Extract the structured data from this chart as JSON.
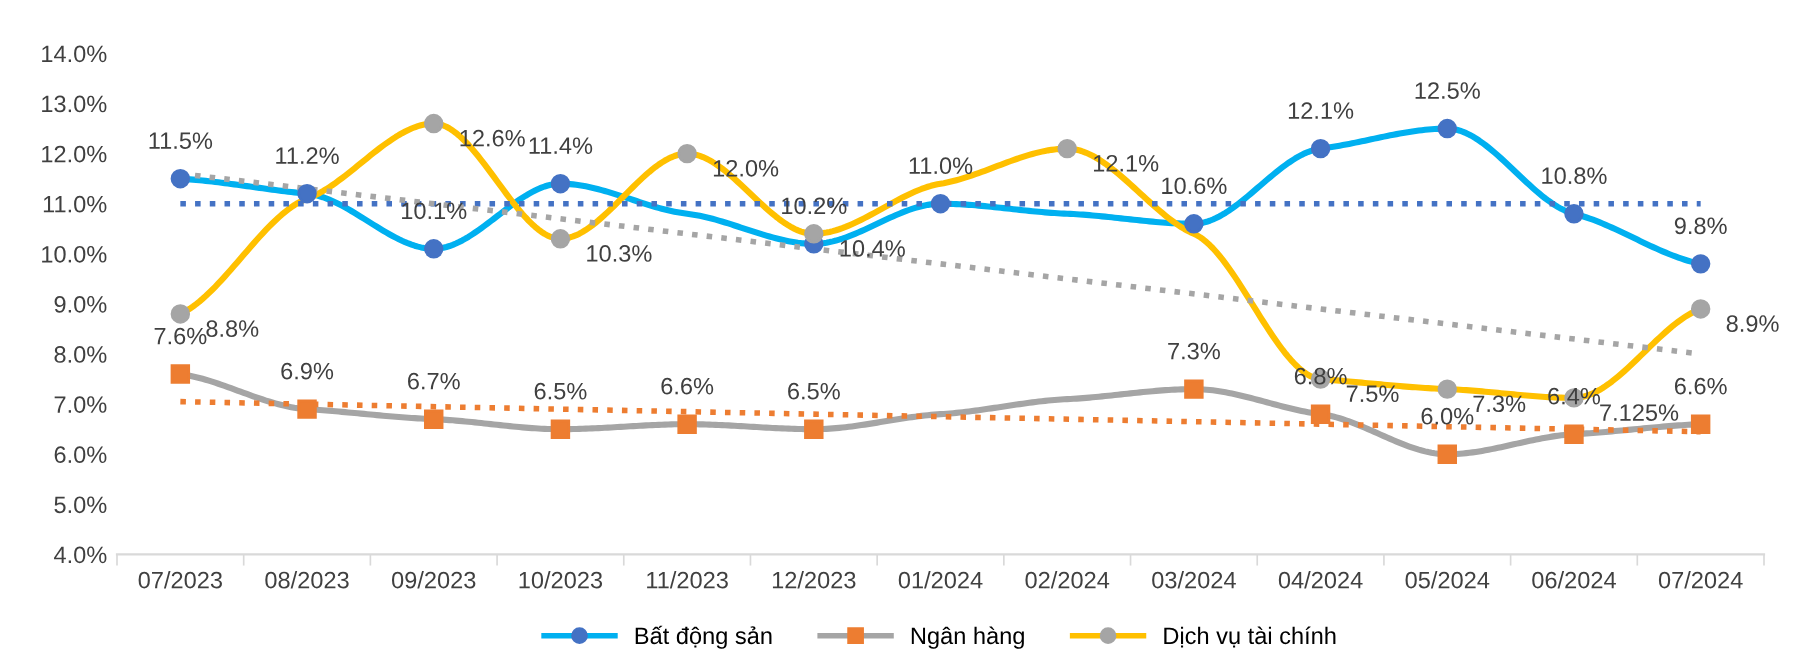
{
  "chart_data": {
    "type": "line",
    "categories": [
      "07/2023",
      "08/2023",
      "09/2023",
      "10/2023",
      "11/2023",
      "12/2023",
      "01/2024",
      "02/2024",
      "03/2024",
      "04/2024",
      "05/2024",
      "06/2024",
      "07/2024"
    ],
    "ylim": [
      4,
      14
    ],
    "yticks": [
      {
        "value": 4,
        "label": "4.0%"
      },
      {
        "value": 5,
        "label": "5.0%"
      },
      {
        "value": 6,
        "label": "6.0%"
      },
      {
        "value": 7,
        "label": "7.0%"
      },
      {
        "value": 8,
        "label": "8.0%"
      },
      {
        "value": 9,
        "label": "9.0%"
      },
      {
        "value": 10,
        "label": "10.0%"
      },
      {
        "value": 11,
        "label": "11.0%"
      },
      {
        "value": 12,
        "label": "12.0%"
      },
      {
        "value": 13,
        "label": "13.0%"
      },
      {
        "value": 14,
        "label": "14.0%"
      }
    ],
    "grid": false,
    "legend": "bottom",
    "series": [
      {
        "name": "Bất động sản",
        "color": "#00b0f0",
        "marker": "circle",
        "colors": [
          "#4472c4",
          "#4472c4",
          "#4472c4",
          "#4472c4",
          null,
          "#4472c4",
          "#4472c4",
          null,
          "#4472c4",
          "#4472c4",
          "#4472c4",
          "#4472c4",
          "#4472c4"
        ],
        "values": [
          11.5,
          11.2,
          10.1,
          11.4,
          10.8,
          10.2,
          11.0,
          10.8,
          10.6,
          12.1,
          12.5,
          10.8,
          9.8
        ],
        "value_labels": [
          "11.5%",
          "11.2%",
          "10.1%",
          "11.4%",
          null,
          "10.2%",
          "11.0%",
          null,
          "10.6%",
          "12.1%",
          "12.5%",
          "10.8%",
          "9.8%"
        ]
      },
      {
        "name": "Ngân hàng",
        "color": "#a5a5a5",
        "marker": "square",
        "colors": [
          "#ed7d31",
          "#ed7d31",
          "#ed7d31",
          "#ed7d31",
          "#ed7d31",
          "#ed7d31",
          null,
          null,
          "#ed7d31",
          "#ed7d31",
          "#ed7d31",
          "#ed7d31",
          "#ed7d31"
        ],
        "values": [
          7.6,
          6.9,
          6.7,
          6.5,
          6.6,
          6.5,
          6.8,
          7.1,
          7.3,
          6.8,
          6.0,
          6.4,
          6.6
        ],
        "value_labels": [
          "7.6%",
          "6.9%",
          "6.7%",
          "6.5%",
          "6.6%",
          "6.5%",
          null,
          null,
          "7.3%",
          "6.8%",
          "6.0%",
          "6.4%",
          "6.6%"
        ]
      },
      {
        "name": "Dịch vụ tài chính",
        "color": "#ffc000",
        "marker": "circle",
        "colors": [
          "#a5a5a5",
          null,
          "#a5a5a5",
          "#a5a5a5",
          "#a5a5a5",
          "#a5a5a5",
          null,
          "#a5a5a5",
          null,
          "#a5a5a5",
          "#a5a5a5",
          "#a5a5a5",
          "#a5a5a5"
        ],
        "values": [
          8.8,
          11.1,
          12.6,
          10.3,
          12.0,
          10.4,
          11.4,
          12.1,
          10.4,
          7.5,
          7.3,
          7.125,
          8.9
        ],
        "value_labels": [
          "8.8%",
          null,
          "12.6%",
          "10.3%",
          "12.0%",
          "10.4%",
          null,
          "12.1%",
          null,
          "7.5%",
          "7.3%",
          "7.125%",
          "8.9%"
        ]
      },
      {
        "type": "line",
        "color": "#4472c4",
        "line_style": "dotted",
        "marker": "none",
        "x": [
          "07/2023",
          "07/2024"
        ],
        "values": [
          11.0,
          11.0
        ]
      },
      {
        "type": "line",
        "color": "#ed7d31",
        "line_style": "dotted",
        "marker": "none",
        "x": [
          "07/2023",
          "07/2024"
        ],
        "values": [
          7.05,
          6.45
        ]
      },
      {
        "type": "line",
        "color": "#a5a5a5",
        "line_style": "dotted",
        "marker": "none",
        "x": [
          "07/2023",
          "07/2024"
        ],
        "values": [
          11.6,
          8.0
        ]
      }
    ]
  }
}
